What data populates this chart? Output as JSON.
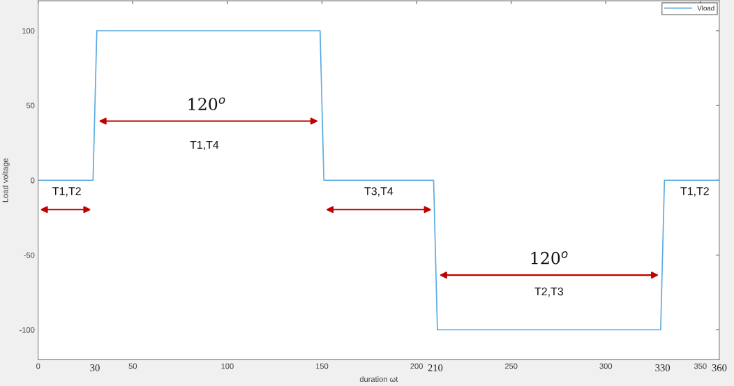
{
  "chart_data": {
    "type": "line",
    "xlabel": "duration ωt",
    "ylabel": "Load voltage",
    "x": [
      0,
      29,
      31,
      149,
      151,
      209,
      211,
      329,
      331,
      360
    ],
    "series": [
      {
        "name": "Vload",
        "color": "#5aaae0",
        "values": [
          0,
          0,
          100,
          100,
          0,
          0,
          -100,
          -100,
          0,
          0
        ]
      }
    ],
    "xlim": [
      0,
      360
    ],
    "xticks": [
      0,
      50,
      100,
      150,
      200,
      250,
      300,
      350
    ],
    "ylim": [
      -120,
      120
    ],
    "yticks": [
      -100,
      -50,
      0,
      50,
      100
    ],
    "grid": false,
    "legend": "top right",
    "marker": "none",
    "line_style": "solid",
    "annotations": [
      "T1,T2",
      "120$^{o}$",
      "T1,T4",
      "T3,T4",
      "120$^{o}$",
      "T2,T3",
      "T1,T2",
      "30",
      "210",
      "330",
      "360"
    ]
  }
}
